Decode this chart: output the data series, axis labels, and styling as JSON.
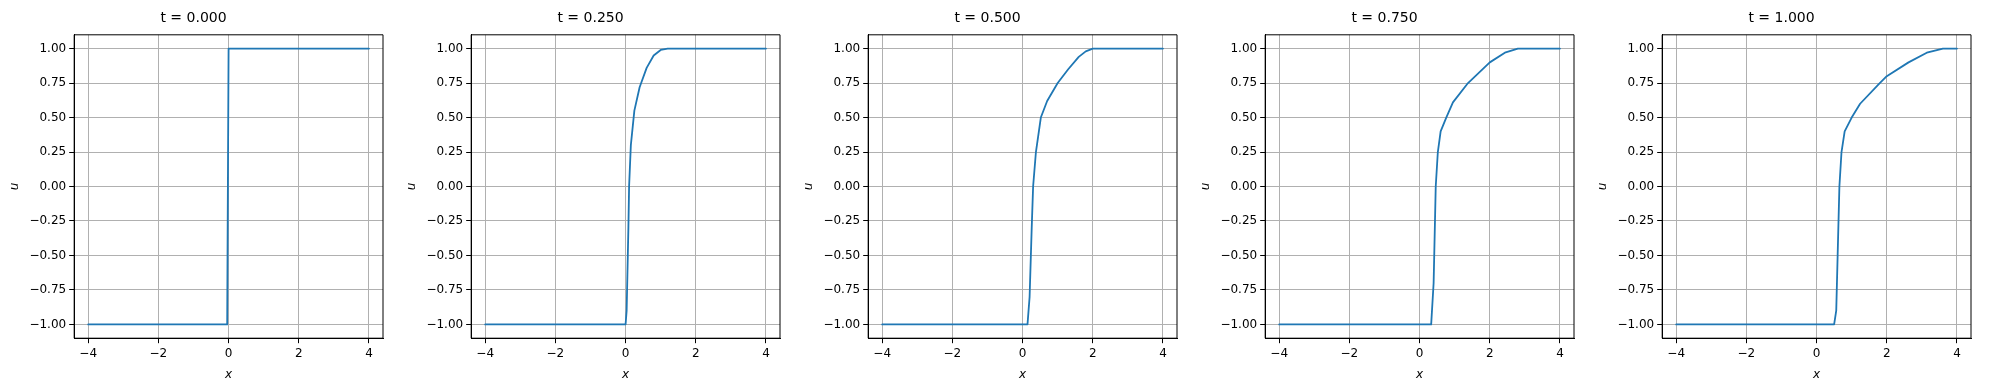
{
  "chart_data": [
    {
      "type": "line",
      "title": "t = 0.000",
      "xlabel": "x",
      "ylabel": "u",
      "grid": true,
      "xlim": [
        -4.4,
        4.4
      ],
      "ylim": [
        -1.1,
        1.1
      ],
      "xticks": [
        -4,
        -2,
        0,
        2,
        4
      ],
      "yticks": [
        {
          "value": -1,
          "label": "−1.00"
        },
        {
          "value": -0.75,
          "label": "−0.75"
        },
        {
          "value": -0.5,
          "label": "−0.50"
        },
        {
          "value": -0.25,
          "label": "−0.25"
        },
        {
          "value": 0,
          "label": "0.00"
        },
        {
          "value": 0.25,
          "label": "0.25"
        },
        {
          "value": 0.5,
          "label": "0.50"
        },
        {
          "value": 0.75,
          "label": "0.75"
        },
        {
          "value": 1,
          "label": "1.00"
        }
      ],
      "series": [
        {
          "color": "#1f77b4",
          "x": [
            -4,
            -0.04,
            0,
            4
          ],
          "values": [
            -1,
            -1,
            1,
            1
          ]
        }
      ]
    },
    {
      "type": "line",
      "title": "t = 0.250",
      "xlabel": "x",
      "ylabel": "u",
      "grid": true,
      "xlim": [
        -4.4,
        4.4
      ],
      "ylim": [
        -1.1,
        1.1
      ],
      "xticks": [
        -4,
        -2,
        0,
        2,
        4
      ],
      "yticks": [
        {
          "value": -1,
          "label": "−1.00"
        },
        {
          "value": -0.75,
          "label": "−0.75"
        },
        {
          "value": -0.5,
          "label": "−0.50"
        },
        {
          "value": -0.25,
          "label": "−0.25"
        },
        {
          "value": 0,
          "label": "0.00"
        },
        {
          "value": 0.25,
          "label": "0.25"
        },
        {
          "value": 0.5,
          "label": "0.50"
        },
        {
          "value": 0.75,
          "label": "0.75"
        },
        {
          "value": 1,
          "label": "1.00"
        }
      ],
      "series": [
        {
          "color": "#1f77b4",
          "x": [
            -4,
            0,
            0.03,
            0.08,
            0.1,
            0.15,
            0.25,
            0.4,
            0.6,
            0.8,
            1.0,
            1.2,
            4
          ],
          "values": [
            -1,
            -1,
            -0.9,
            -0.3,
            0,
            0.3,
            0.55,
            0.72,
            0.86,
            0.95,
            0.99,
            1,
            1
          ]
        }
      ]
    },
    {
      "type": "line",
      "title": "t = 0.500",
      "xlabel": "x",
      "ylabel": "u",
      "grid": true,
      "xlim": [
        -4.4,
        4.4
      ],
      "ylim": [
        -1.1,
        1.1
      ],
      "xticks": [
        -4,
        -2,
        0,
        2,
        4
      ],
      "yticks": [
        {
          "value": -1,
          "label": "−1.00"
        },
        {
          "value": -0.75,
          "label": "−0.75"
        },
        {
          "value": -0.5,
          "label": "−0.50"
        },
        {
          "value": -0.25,
          "label": "−0.25"
        },
        {
          "value": 0,
          "label": "0.00"
        },
        {
          "value": 0.25,
          "label": "0.25"
        },
        {
          "value": 0.5,
          "label": "0.50"
        },
        {
          "value": 0.75,
          "label": "0.75"
        },
        {
          "value": 1,
          "label": "1.00"
        }
      ],
      "series": [
        {
          "color": "#1f77b4",
          "x": [
            -4,
            0.14,
            0.2,
            0.26,
            0.3,
            0.38,
            0.52,
            0.7,
            1.0,
            1.3,
            1.6,
            1.8,
            2.0,
            4
          ],
          "values": [
            -1,
            -1,
            -0.8,
            -0.3,
            0,
            0.25,
            0.5,
            0.62,
            0.75,
            0.85,
            0.94,
            0.98,
            1,
            1
          ]
        }
      ]
    },
    {
      "type": "line",
      "title": "t = 0.750",
      "xlabel": "x",
      "ylabel": "u",
      "grid": true,
      "xlim": [
        -4.4,
        4.4
      ],
      "ylim": [
        -1.1,
        1.1
      ],
      "xticks": [
        -4,
        -2,
        0,
        2,
        4
      ],
      "yticks": [
        {
          "value": -1,
          "label": "−1.00"
        },
        {
          "value": -0.75,
          "label": "−0.75"
        },
        {
          "value": -0.5,
          "label": "−0.50"
        },
        {
          "value": -0.25,
          "label": "−0.25"
        },
        {
          "value": 0,
          "label": "0.00"
        },
        {
          "value": 0.25,
          "label": "0.25"
        },
        {
          "value": 0.5,
          "label": "0.50"
        },
        {
          "value": 0.75,
          "label": "0.75"
        },
        {
          "value": 1,
          "label": "1.00"
        }
      ],
      "series": [
        {
          "color": "#1f77b4",
          "x": [
            -4,
            0.33,
            0.4,
            0.46,
            0.52,
            0.6,
            0.76,
            0.95,
            1.38,
            2.0,
            2.43,
            2.8,
            4
          ],
          "values": [
            -1,
            -1,
            -0.7,
            0,
            0.25,
            0.4,
            0.5,
            0.61,
            0.75,
            0.9,
            0.97,
            1,
            1
          ]
        }
      ]
    },
    {
      "type": "line",
      "title": "t = 1.000",
      "xlabel": "x",
      "ylabel": "u",
      "grid": true,
      "xlim": [
        -4.4,
        4.4
      ],
      "ylim": [
        -1.1,
        1.1
      ],
      "xticks": [
        -4,
        -2,
        0,
        2,
        4
      ],
      "yticks": [
        {
          "value": -1,
          "label": "−1.00"
        },
        {
          "value": -0.75,
          "label": "−0.75"
        },
        {
          "value": -0.5,
          "label": "−0.50"
        },
        {
          "value": -0.25,
          "label": "−0.25"
        },
        {
          "value": 0,
          "label": "0.00"
        },
        {
          "value": 0.25,
          "label": "0.25"
        },
        {
          "value": 0.5,
          "label": "0.50"
        },
        {
          "value": 0.75,
          "label": "0.75"
        },
        {
          "value": 1,
          "label": "1.00"
        }
      ],
      "series": [
        {
          "color": "#1f77b4",
          "x": [
            -4,
            0.5,
            0.56,
            0.6,
            0.65,
            0.71,
            0.8,
            1.0,
            1.24,
            1.8,
            2.0,
            2.62,
            3.14,
            3.6,
            4
          ],
          "values": [
            -1,
            -1,
            -0.9,
            -0.5,
            0,
            0.25,
            0.4,
            0.5,
            0.6,
            0.75,
            0.8,
            0.9,
            0.97,
            1,
            1
          ]
        }
      ]
    }
  ]
}
